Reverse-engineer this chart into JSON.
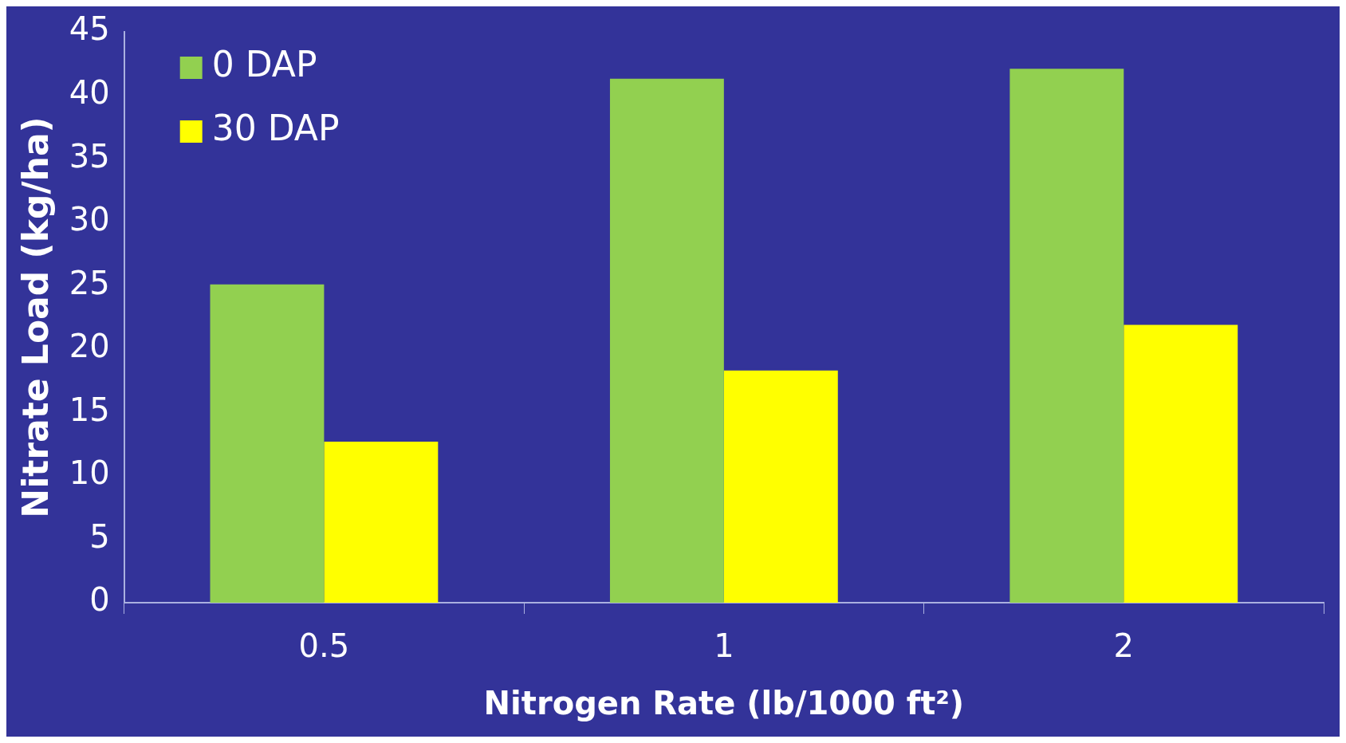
{
  "chart_data": {
    "type": "bar",
    "xlabel": "Nitrogen Rate (lb/1000 ft²)",
    "ylabel": "Nitrate Load (kg/ha)",
    "categories": [
      "0.5",
      "1",
      "2"
    ],
    "series": [
      {
        "name": "0 DAP",
        "color": "#92d050",
        "values": [
          25.1,
          41.3,
          42.1
        ]
      },
      {
        "name": "30 DAP",
        "color": "#ffff00",
        "values": [
          12.7,
          18.3,
          21.9
        ]
      }
    ],
    "ylim": [
      0,
      45
    ],
    "yticks": [
      0,
      5,
      10,
      15,
      20,
      25,
      30,
      35,
      40,
      45
    ],
    "grid": false,
    "legend": "top left"
  }
}
